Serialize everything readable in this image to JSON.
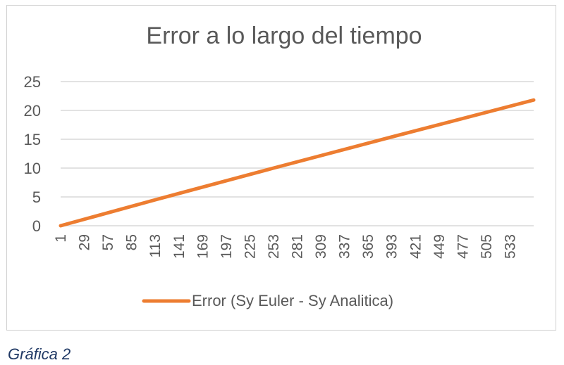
{
  "chart_data": {
    "type": "line",
    "title": "Error a lo largo del tiempo",
    "xlabel": "",
    "ylabel": "",
    "x_tick_labels": [
      "1",
      "29",
      "57",
      "85",
      "113",
      "141",
      "169",
      "197",
      "225",
      "253",
      "281",
      "309",
      "337",
      "365",
      "393",
      "421",
      "449",
      "477",
      "505",
      "533"
    ],
    "x_range": [
      1,
      561
    ],
    "ylim": [
      0,
      25
    ],
    "y_ticks": [
      0,
      5,
      10,
      15,
      20,
      25
    ],
    "grid": "horizontal",
    "legend_position": "bottom",
    "series": [
      {
        "name": "Error (Sy Euler - Sy Analitica)",
        "color": "#ED7D31",
        "x": [
          1,
          113,
          253,
          393,
          561
        ],
        "y": [
          0,
          4.5,
          10,
          15.4,
          21.8
        ]
      }
    ]
  },
  "caption": "Gráfica 2"
}
